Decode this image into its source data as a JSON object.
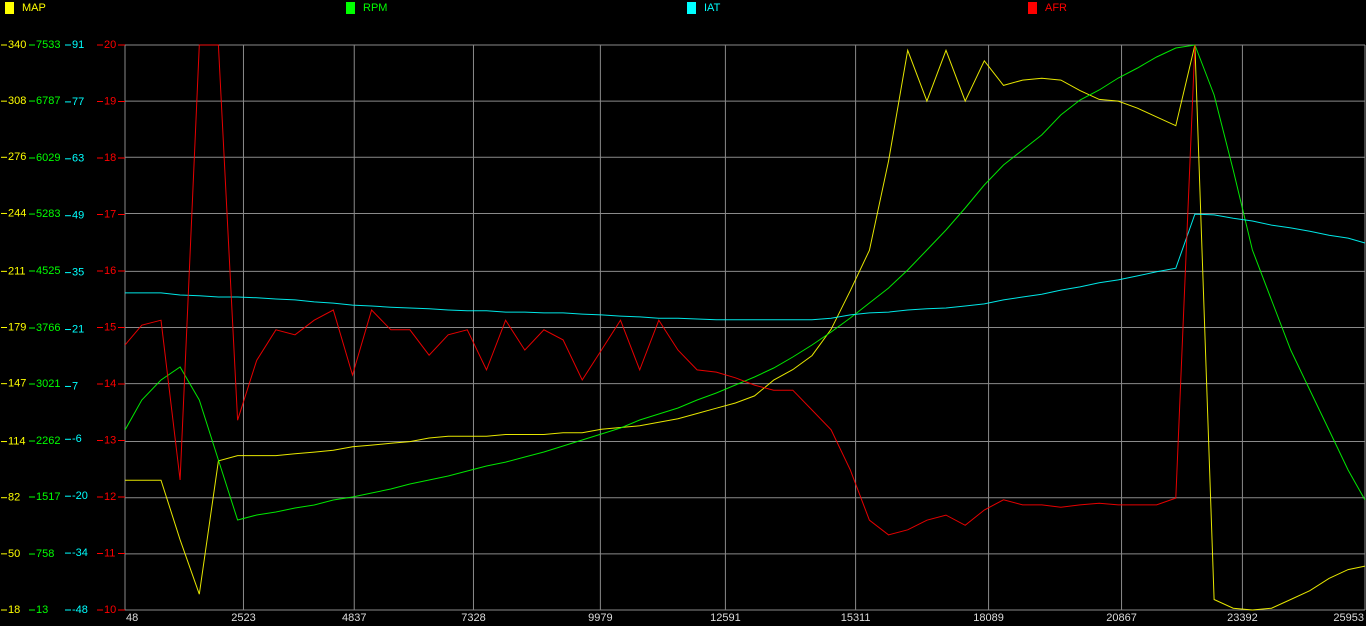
{
  "chart_data": {
    "type": "line",
    "x": [
      48,
      400,
      800,
      1200,
      1600,
      2000,
      2400,
      2800,
      3200,
      3600,
      4000,
      4400,
      4800,
      5200,
      5600,
      6000,
      6400,
      6800,
      7200,
      7600,
      8000,
      8400,
      8800,
      9200,
      9600,
      10000,
      10400,
      10800,
      11200,
      11600,
      12000,
      12400,
      12800,
      13200,
      13600,
      14000,
      14400,
      14800,
      15200,
      15600,
      16000,
      16400,
      16800,
      17200,
      17600,
      18000,
      18400,
      18800,
      19200,
      19600,
      20000,
      20400,
      20800,
      21200,
      21600,
      22000,
      22400,
      22800,
      23200,
      23600,
      24000,
      24400,
      24800,
      25200,
      25600,
      25953
    ],
    "xlim": [
      48,
      25953
    ],
    "xticks": [
      48,
      2523,
      4837,
      7328,
      9979,
      12591,
      15311,
      18089,
      20867,
      23392,
      25953
    ],
    "grid": true,
    "series": [
      {
        "name": "MAP",
        "color": "#ffff00",
        "ylim": [
          18,
          340
        ],
        "yticks": [
          18,
          50,
          82,
          114,
          147,
          179,
          211,
          244,
          276,
          308,
          340
        ],
        "values": [
          92,
          92,
          92,
          58,
          27,
          103,
          106,
          106,
          106,
          107,
          108,
          109,
          111,
          112,
          113,
          114,
          116,
          117,
          117,
          117,
          118,
          118,
          118,
          119,
          119,
          121,
          122,
          123,
          125,
          127,
          130,
          133,
          136,
          140,
          149,
          155,
          163,
          178,
          200,
          223,
          274,
          337,
          308,
          337,
          308,
          331,
          317,
          320,
          321,
          320,
          314,
          309,
          308,
          304,
          299,
          294,
          340,
          24,
          19,
          18,
          19,
          24,
          29,
          36,
          41,
          43
        ]
      },
      {
        "name": "RPM",
        "color": "#00ff00",
        "ylim": [
          13,
          7533
        ],
        "yticks": [
          13,
          758,
          1517,
          2262,
          3021,
          3766,
          4525,
          5283,
          6029,
          6787,
          7533
        ],
        "values": [
          2409,
          2808,
          3074,
          3247,
          2808,
          2009,
          1211,
          1277,
          1317,
          1370,
          1410,
          1477,
          1517,
          1570,
          1623,
          1690,
          1743,
          1796,
          1863,
          1929,
          1982,
          2049,
          2116,
          2196,
          2276,
          2355,
          2435,
          2542,
          2622,
          2702,
          2808,
          2901,
          3008,
          3114,
          3234,
          3380,
          3540,
          3713,
          3899,
          4099,
          4299,
          4538,
          4805,
          5071,
          5364,
          5670,
          5936,
          6136,
          6336,
          6602,
          6801,
          6934,
          7094,
          7227,
          7373,
          7493,
          7533,
          6868,
          5869,
          4805,
          4139,
          3474,
          2941,
          2409,
          1876,
          1477
        ]
      },
      {
        "name": "IAT",
        "color": "#00ffff",
        "ylim": [
          -48,
          91
        ],
        "yticks": [
          -48,
          -34,
          -20,
          -6,
          7,
          21,
          35,
          49,
          63,
          77,
          91
        ],
        "values": [
          30.0,
          30.0,
          30.0,
          29.5,
          29.3,
          29.0,
          29.0,
          28.8,
          28.5,
          28.3,
          27.8,
          27.5,
          27.0,
          26.8,
          26.5,
          26.3,
          26.1,
          25.8,
          25.6,
          25.6,
          25.3,
          25.3,
          25.1,
          25.1,
          24.8,
          24.6,
          24.3,
          24.1,
          23.8,
          23.8,
          23.6,
          23.4,
          23.4,
          23.4,
          23.4,
          23.4,
          23.4,
          23.8,
          24.6,
          25.1,
          25.3,
          25.8,
          26.1,
          26.3,
          26.8,
          27.3,
          28.3,
          29.0,
          29.7,
          30.7,
          31.5,
          32.5,
          33.2,
          34.2,
          35.2,
          36.1,
          49.4,
          49.2,
          48.4,
          47.7,
          46.7,
          46.0,
          45.2,
          44.2,
          43.5,
          42.3
        ]
      },
      {
        "name": "AFR",
        "color": "#ff0000",
        "ylim": [
          10,
          20
        ],
        "yticks": [
          10,
          11,
          12,
          13,
          14,
          15,
          16,
          17,
          18,
          19,
          20
        ],
        "values": [
          14.69,
          15.04,
          15.13,
          12.3,
          20,
          20,
          13.36,
          14.42,
          14.96,
          14.87,
          15.13,
          15.31,
          14.16,
          15.31,
          14.96,
          14.96,
          14.51,
          14.87,
          14.96,
          14.25,
          15.13,
          14.6,
          14.96,
          14.78,
          14.07,
          14.6,
          15.13,
          14.25,
          15.13,
          14.6,
          14.25,
          14.21,
          14.11,
          13.98,
          13.89,
          13.89,
          13.54,
          13.19,
          12.48,
          11.59,
          11.33,
          11.42,
          11.59,
          11.68,
          11.5,
          11.77,
          11.95,
          11.86,
          11.86,
          11.82,
          11.86,
          11.89,
          11.86,
          11.86,
          11.86,
          11.98,
          20,
          null,
          null,
          null,
          null,
          null,
          null,
          null,
          null,
          null
        ]
      }
    ]
  }
}
